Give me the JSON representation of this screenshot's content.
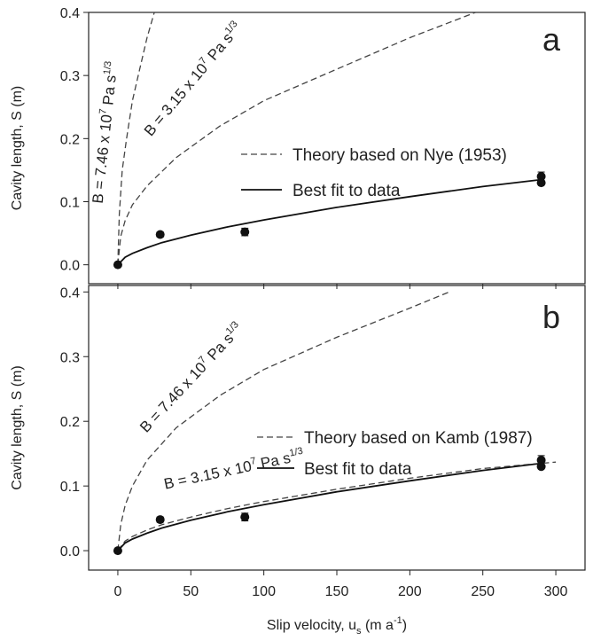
{
  "chart_data": [
    {
      "type": "line",
      "panel_label": "a",
      "ylabel": "Cavity length, S (m)",
      "xlim": [
        -20,
        320
      ],
      "xticks": [
        0,
        50,
        100,
        150,
        200,
        250,
        300
      ],
      "ylim": [
        -0.03,
        0.4
      ],
      "yticks": [
        {
          "value": 0,
          "label": "0.0"
        },
        0.1,
        0.2,
        0.3,
        0.4
      ],
      "series": [
        {
          "name": "Theory based on Nye (1953)",
          "style": "dashed",
          "color": "#444444",
          "curves": [
            {
              "x": [
                0,
                1,
                3,
                6,
                10,
                15,
                20,
                25
              ],
              "values": [
                0,
                0.08,
                0.15,
                0.2,
                0.26,
                0.31,
                0.36,
                0.4
              ]
            },
            {
              "x": [
                0,
                2,
                5,
                10,
                20,
                40,
                70,
                100,
                150,
                200,
                245
              ],
              "values": [
                0,
                0.045,
                0.07,
                0.095,
                0.125,
                0.17,
                0.22,
                0.26,
                0.31,
                0.36,
                0.4
              ]
            }
          ]
        },
        {
          "name": "Best fit to data",
          "style": "solid",
          "color": "#111111",
          "curves": [
            {
              "x": [
                0,
                5,
                10,
                20,
                30,
                50,
                75,
                100,
                150,
                200,
                250,
                290
              ],
              "values": [
                0,
                0.012,
                0.018,
                0.027,
                0.035,
                0.047,
                0.06,
                0.071,
                0.091,
                0.108,
                0.124,
                0.135
              ]
            }
          ]
        }
      ],
      "points": {
        "x": [
          0,
          29,
          87,
          290,
          290
        ],
        "values": [
          0,
          0.048,
          0.052,
          0.14,
          0.13
        ],
        "errors": [
          0.003,
          0.004,
          0.006,
          0.007,
          0.003
        ]
      },
      "annotations": [
        {
          "text": "B = 7.46 x 10",
          "exp": "7",
          "unit": " Pa s",
          "unit_exp": "1/3"
        },
        {
          "text": "B = 3.15 x 10",
          "exp": "7",
          "unit": " Pa s",
          "unit_exp": "1/3"
        }
      ]
    },
    {
      "type": "line",
      "panel_label": "b",
      "ylabel": "Cavity length, S (m)",
      "xlabel": [
        "Slip velocity, u",
        "s",
        " (m a",
        "-1",
        ")"
      ],
      "xlim": [
        -20,
        320
      ],
      "xticks": [
        0,
        50,
        100,
        150,
        200,
        250,
        300
      ],
      "ylim": [
        -0.03,
        0.41
      ],
      "yticks": [
        {
          "value": 0,
          "label": "0.0"
        },
        0.1,
        0.2,
        0.3,
        0.4
      ],
      "series": [
        {
          "name": "Theory based on Kamb (1987)",
          "style": "dashed",
          "color": "#444444",
          "curves": [
            {
              "x": [
                0,
                2,
                5,
                10,
                20,
                40,
                70,
                100,
                150,
                200,
                227
              ],
              "values": [
                0,
                0.04,
                0.07,
                0.1,
                0.14,
                0.19,
                0.24,
                0.28,
                0.33,
                0.375,
                0.4
              ]
            },
            {
              "x": [
                0,
                5,
                10,
                20,
                30,
                50,
                75,
                100,
                150,
                200,
                250,
                300
              ],
              "values": [
                0,
                0.015,
                0.022,
                0.032,
                0.04,
                0.052,
                0.065,
                0.076,
                0.095,
                0.112,
                0.127,
                0.137
              ]
            }
          ]
        },
        {
          "name": "Best fit to data",
          "style": "solid",
          "color": "#111111",
          "curves": [
            {
              "x": [
                0,
                5,
                10,
                20,
                30,
                50,
                75,
                100,
                150,
                200,
                250,
                290
              ],
              "values": [
                0,
                0.012,
                0.018,
                0.027,
                0.035,
                0.047,
                0.06,
                0.071,
                0.091,
                0.108,
                0.124,
                0.135
              ]
            }
          ]
        }
      ],
      "points": {
        "x": [
          0,
          29,
          87,
          290,
          290
        ],
        "values": [
          0,
          0.048,
          0.052,
          0.14,
          0.13
        ],
        "errors": [
          0.003,
          0.004,
          0.006,
          0.007,
          0.003
        ]
      },
      "annotations": [
        {
          "text": "B = 7.46 x 10",
          "exp": "7",
          "unit": " Pa s",
          "unit_exp": "1/3"
        },
        {
          "text": "B = 3.15 x 10",
          "exp": "7",
          "unit": " Pa s",
          "unit_exp": "1/3"
        }
      ]
    }
  ]
}
